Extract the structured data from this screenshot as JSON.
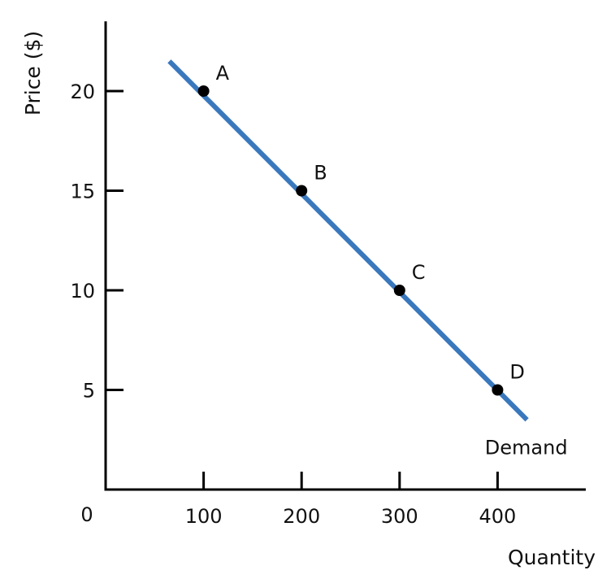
{
  "chart_data": {
    "type": "line",
    "title": "",
    "xlabel": "Quantity",
    "ylabel": "Price ($)",
    "xlim": [
      0,
      490
    ],
    "ylim": [
      0,
      23.5
    ],
    "origin_label": "0",
    "x_ticks": [
      {
        "value": 100,
        "label": "100"
      },
      {
        "value": 200,
        "label": "200"
      },
      {
        "value": 300,
        "label": "300"
      },
      {
        "value": 400,
        "label": "400"
      }
    ],
    "y_ticks": [
      {
        "value": 5,
        "label": "5"
      },
      {
        "value": 10,
        "label": "10"
      },
      {
        "value": 15,
        "label": "15"
      },
      {
        "value": 20,
        "label": "20"
      }
    ],
    "series": [
      {
        "name": "Demand",
        "color": "#3a78bd",
        "x": [
          65,
          430
        ],
        "y": [
          21.5,
          3.5
        ],
        "points": [
          {
            "label": "A",
            "x": 100,
            "y": 20
          },
          {
            "label": "B",
            "x": 200,
            "y": 15
          },
          {
            "label": "C",
            "x": 300,
            "y": 10
          },
          {
            "label": "D",
            "x": 400,
            "y": 5
          }
        ]
      }
    ],
    "grid": false,
    "legend": "none"
  }
}
